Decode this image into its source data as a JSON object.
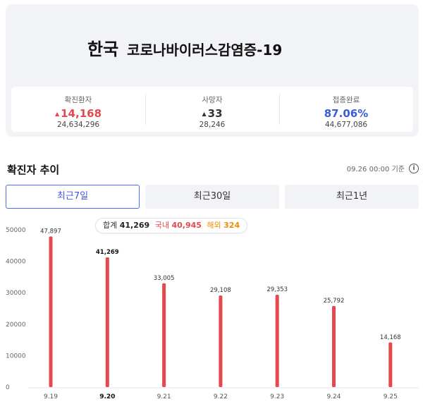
{
  "header": {
    "country": "한국",
    "disease": "코로나바이러스감염증-19"
  },
  "stats": [
    {
      "label": "확진환자",
      "change": "14,168",
      "arrow": "▲",
      "total": "24,634,296",
      "color": "#e5484d"
    },
    {
      "label": "사망자",
      "change": "33",
      "arrow": "▲",
      "total": "28,246",
      "color": "#333333"
    },
    {
      "label": "접종완료",
      "change": "87.06%",
      "arrow": "",
      "total": "44,677,086",
      "color": "#3b5bdb"
    }
  ],
  "trend": {
    "title": "확진자 추이",
    "updated": "09.26 00:00 기준",
    "info_icon": "info-icon"
  },
  "tabs": [
    {
      "label": "최근7일",
      "active": true
    },
    {
      "label": "최근30일",
      "active": false
    },
    {
      "label": "최근1년",
      "active": false
    }
  ],
  "tooltip": {
    "total_label": "합계",
    "total_value": "41,269",
    "domestic_label": "국내",
    "domestic_value": "40,945",
    "overseas_label": "해외",
    "overseas_value": "324"
  },
  "chart_data": {
    "type": "bar",
    "categories": [
      "9.19",
      "9.20",
      "9.21",
      "9.22",
      "9.23",
      "9.24",
      "9.25"
    ],
    "values": [
      47897,
      41269,
      33005,
      29108,
      29353,
      25792,
      14168
    ],
    "value_labels": [
      "47,897",
      "41,269",
      "33,005",
      "29,108",
      "29,353",
      "25,792",
      "14,168"
    ],
    "highlighted_index": 1,
    "ylim": [
      0,
      50000
    ],
    "yticks": [
      0,
      10000,
      20000,
      30000,
      40000,
      50000
    ],
    "grid": false,
    "bar_color": "#e5484d",
    "title": "",
    "xlabel": "",
    "ylabel": ""
  }
}
